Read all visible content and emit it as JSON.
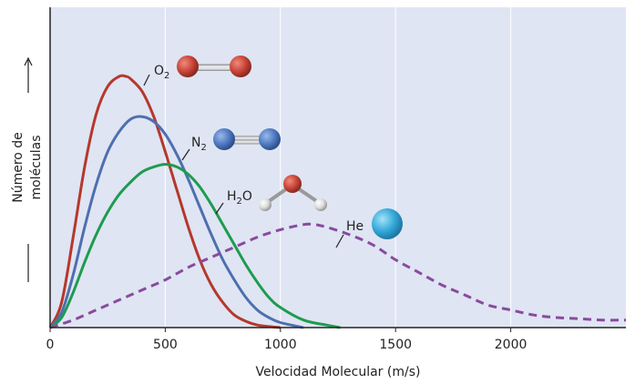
{
  "chart_data": {
    "type": "line",
    "xlabel": "Velocidad Molecular (m/s)",
    "ylabel_line1": "Número de",
    "ylabel_line2": "moléculas",
    "xlim": [
      0,
      2500
    ],
    "x_ticks": [
      0,
      500,
      1000,
      1500,
      2000
    ],
    "x_tick_labels": [
      "0",
      "500",
      "1000",
      "1500",
      "2000"
    ],
    "grid": true,
    "y_unit": "relative number of molecules (arbitrary)",
    "ylim": [
      0,
      1
    ],
    "series": [
      {
        "name": "O2",
        "label_main": "O",
        "label_sub": "2",
        "color": "#b5382c",
        "style": "solid",
        "x": [
          0,
          50,
          100,
          150,
          200,
          250,
          300,
          330,
          350,
          400,
          450,
          500,
          550,
          600,
          650,
          700,
          750,
          800,
          850,
          900,
          950,
          1000
        ],
        "y": [
          0.0,
          0.1,
          0.36,
          0.64,
          0.85,
          0.96,
          1.0,
          1.0,
          0.99,
          0.94,
          0.84,
          0.7,
          0.55,
          0.4,
          0.27,
          0.17,
          0.1,
          0.05,
          0.025,
          0.01,
          0.004,
          0.0
        ]
      },
      {
        "name": "N2",
        "label_main": "N",
        "label_sub": "2",
        "color": "#4e6fb0",
        "style": "solid",
        "x": [
          0,
          50,
          100,
          150,
          200,
          250,
          300,
          350,
          400,
          450,
          500,
          550,
          600,
          650,
          700,
          750,
          800,
          850,
          900,
          950,
          1000,
          1100
        ],
        "y": [
          0.0,
          0.06,
          0.21,
          0.4,
          0.57,
          0.7,
          0.78,
          0.83,
          0.84,
          0.82,
          0.77,
          0.69,
          0.59,
          0.48,
          0.37,
          0.27,
          0.19,
          0.12,
          0.07,
          0.04,
          0.02,
          0.0
        ]
      },
      {
        "name": "H2O",
        "label_main": "H",
        "label_sub": "2",
        "label_tail": "O",
        "color": "#1e9b4f",
        "style": "solid",
        "x": [
          0,
          50,
          100,
          150,
          200,
          250,
          300,
          350,
          400,
          450,
          500,
          550,
          600,
          650,
          700,
          750,
          800,
          850,
          900,
          950,
          1000,
          1100,
          1200,
          1260
        ],
        "y": [
          0.0,
          0.04,
          0.14,
          0.26,
          0.37,
          0.46,
          0.53,
          0.58,
          0.62,
          0.64,
          0.65,
          0.64,
          0.61,
          0.56,
          0.49,
          0.41,
          0.33,
          0.25,
          0.18,
          0.12,
          0.08,
          0.03,
          0.01,
          0.0
        ]
      },
      {
        "name": "He",
        "label_main": "He",
        "color": "#8a4a9e",
        "style": "dashed",
        "x": [
          0,
          100,
          200,
          300,
          400,
          500,
          600,
          700,
          800,
          900,
          1000,
          1100,
          1150,
          1200,
          1300,
          1400,
          1500,
          1600,
          1700,
          1800,
          1900,
          2000,
          2100,
          2200,
          2300,
          2400,
          2500
        ],
        "y": [
          0.0,
          0.03,
          0.07,
          0.11,
          0.15,
          0.19,
          0.24,
          0.28,
          0.32,
          0.36,
          0.39,
          0.41,
          0.41,
          0.4,
          0.37,
          0.33,
          0.27,
          0.22,
          0.17,
          0.13,
          0.09,
          0.07,
          0.05,
          0.04,
          0.035,
          0.03,
          0.03
        ]
      }
    ]
  },
  "colors": {
    "plot_bg": "#dfe5f3",
    "grid": "#ffffff",
    "axis": "#222222",
    "o2_atom": "#c94438",
    "n2_atom": "#4f7ac2",
    "h2o_o_atom": "#c94438",
    "h2o_h_atom": "#e8e8e8",
    "he_atom": "#34a9d9"
  },
  "icons": [
    "o2-molecule-icon",
    "n2-molecule-icon",
    "h2o-molecule-icon",
    "he-atom-icon",
    "y-axis-up-arrow-icon"
  ]
}
